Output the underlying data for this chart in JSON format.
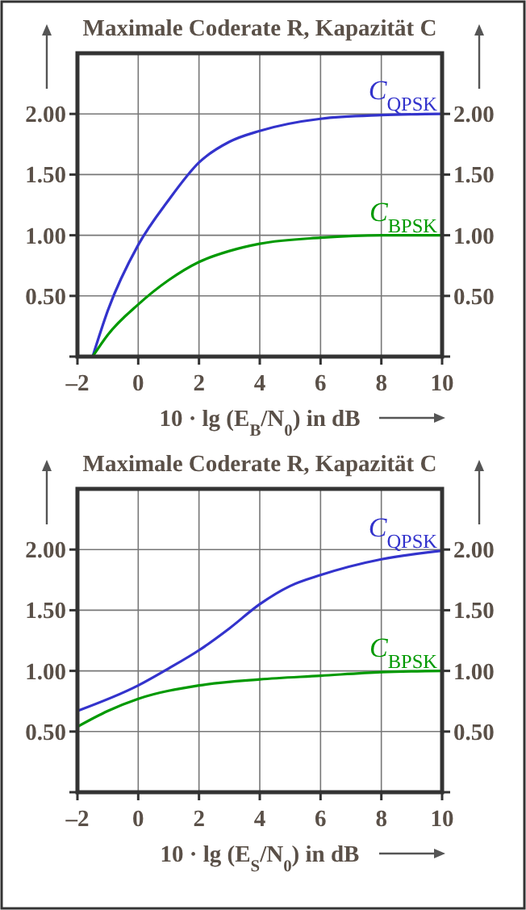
{
  "chart_data": [
    {
      "type": "line",
      "title": "Maximale Coderate R, Kapazität C",
      "xlabel": "10 · lg (E$_{B}$/N$_{0}$) in dB",
      "xlim": [
        -2,
        10
      ],
      "xticks": [
        {
          "value": -2,
          "label": "–2"
        },
        0,
        2,
        4,
        6,
        8,
        10
      ],
      "ylim": [
        0,
        2.5
      ],
      "yticks": [
        {
          "value": 0,
          "label": null
        },
        {
          "value": 0.5,
          "label": "0.50"
        },
        {
          "value": 1,
          "label": "1.00"
        },
        {
          "value": 1.5,
          "label": "1.50"
        },
        {
          "value": 2,
          "label": "2.00"
        }
      ],
      "y2lim": [
        0,
        2.5
      ],
      "y2ticks": [
        {
          "value": 0,
          "label": null
        },
        {
          "value": 0.5,
          "label": "0.50"
        },
        {
          "value": 1,
          "label": "1.00"
        },
        {
          "value": 1.5,
          "label": "1.50"
        },
        {
          "value": 2,
          "label": "2.00"
        }
      ],
      "grid": true,
      "legend": false,
      "series": [
        {
          "name": "C$_{QPSK}$",
          "color": "#3333cc",
          "x": [
            -1.5,
            -1,
            0,
            1,
            2,
            3,
            4,
            6,
            8,
            10
          ],
          "values": [
            0,
            0.38,
            0.92,
            1.29,
            1.6,
            1.77,
            1.86,
            1.96,
            1.99,
            2.0
          ]
        },
        {
          "name": "C$_{BPSK}$",
          "color": "#009900",
          "x": [
            -1.5,
            -1,
            0,
            1,
            2,
            3,
            4,
            6,
            8,
            10
          ],
          "values": [
            0,
            0.18,
            0.43,
            0.63,
            0.78,
            0.87,
            0.93,
            0.98,
            1.0,
            1.0
          ]
        }
      ]
    },
    {
      "type": "line",
      "title": "Maximale Coderate R, Kapazität C",
      "xlabel": "10 · lg (E$_{S}$/N$_{0}$) in dB",
      "xlim": [
        -2,
        10
      ],
      "xticks": [
        {
          "value": -2,
          "label": "–2"
        },
        0,
        2,
        4,
        6,
        8,
        10
      ],
      "ylim": [
        0,
        2.5
      ],
      "yticks": [
        {
          "value": 0,
          "label": null
        },
        {
          "value": 0.5,
          "label": "0.50"
        },
        {
          "value": 1,
          "label": "1.00"
        },
        {
          "value": 1.5,
          "label": "1.50"
        },
        {
          "value": 2,
          "label": "2.00"
        }
      ],
      "y2lim": [
        0,
        2.5
      ],
      "y2ticks": [
        {
          "value": 0,
          "label": null
        },
        {
          "value": 0.5,
          "label": "0.50"
        },
        {
          "value": 1,
          "label": "1.00"
        },
        {
          "value": 1.5,
          "label": "1.50"
        },
        {
          "value": 2,
          "label": "2.00"
        }
      ],
      "grid": true,
      "legend": false,
      "series": [
        {
          "name": "C$_{QPSK}$",
          "color": "#3333cc",
          "x": [
            -2,
            0,
            1,
            2,
            3,
            4,
            5,
            6,
            8,
            10
          ],
          "values": [
            0.67,
            0.88,
            1.02,
            1.17,
            1.35,
            1.55,
            1.7,
            1.79,
            1.92,
            1.99
          ]
        },
        {
          "name": "C$_{BPSK}$",
          "color": "#009900",
          "x": [
            -2,
            -1,
            0,
            2,
            4,
            6,
            8,
            10
          ],
          "values": [
            0.54,
            0.67,
            0.77,
            0.88,
            0.93,
            0.96,
            0.99,
            1.0
          ]
        }
      ]
    }
  ]
}
